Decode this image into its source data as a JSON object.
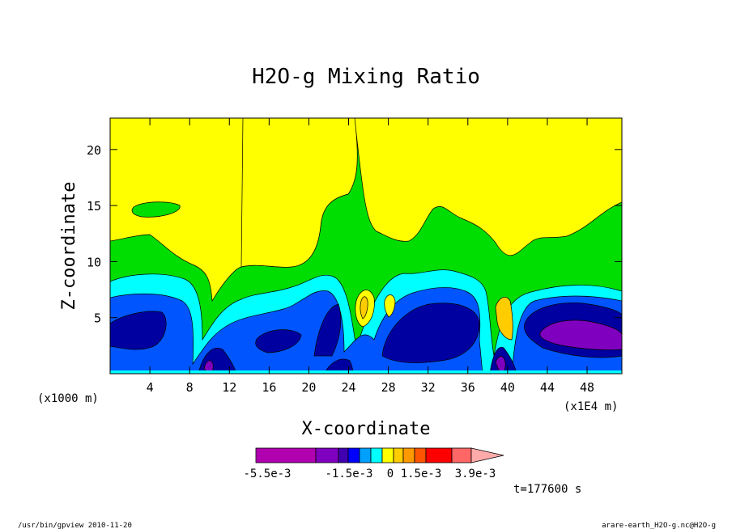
{
  "chart_data": {
    "type": "heatmap",
    "title": "H2O-g Mixing Ratio",
    "xlabel": "X-coordinate",
    "ylabel": "Z-coordinate",
    "x_unit_label": "(x1E4 m)",
    "y_unit_label": "(x1000 m)",
    "xlim": [
      0,
      51.5
    ],
    "ylim": [
      0,
      22.8
    ],
    "x_ticks": [
      "4",
      "8",
      "12",
      "16",
      "20",
      "24",
      "28",
      "32",
      "36",
      "40",
      "44",
      "48"
    ],
    "y_ticks": [
      "5",
      "10",
      "15",
      "20"
    ],
    "colorbar": {
      "colors": [
        "#b000b0",
        "#8000c0",
        "#4000b0",
        "#0000ff",
        "#00a0ff",
        "#00ffff",
        "#ffff00",
        "#ffcc00",
        "#ff9900",
        "#ff5500",
        "#ff0000",
        "#ff6666",
        "#ffaaaa"
      ],
      "labels": [
        "-5.5e-3",
        "-1.5e-3",
        "0",
        "1.5e-3",
        "3.9e-3"
      ]
    },
    "levels": {
      "yellow": "#ffff00",
      "green": "#00dd00",
      "cyan": "#00ffff",
      "blue": "#0055ff",
      "navy": "#0000a0",
      "purple": "#8000c0",
      "orange": "#ffcc00"
    }
  },
  "time_label": "t=177600 s",
  "footer_left": "/usr/bin/gpview   2010-11-20",
  "footer_right": "arare-earth_H2O-g.nc@H2O-g"
}
